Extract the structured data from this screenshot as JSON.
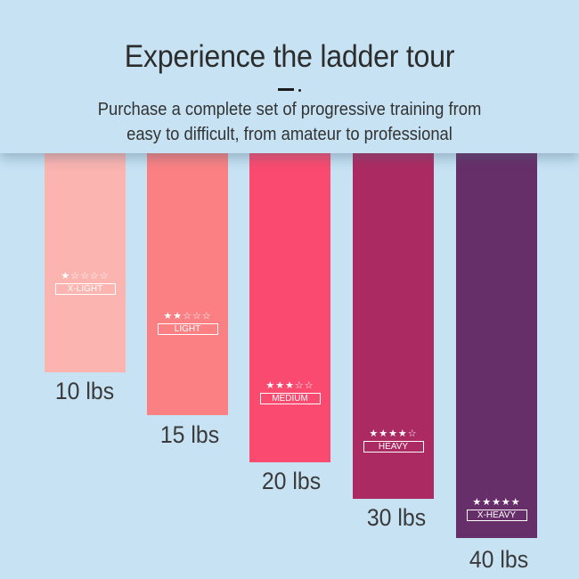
{
  "header": {
    "title": "Experience the ladder tour",
    "subtitle_line1": "Purchase a complete set of progressive training from",
    "subtitle_line2": "easy to difficult, from amateur to professional"
  },
  "bands": [
    {
      "weight": "10 lbs",
      "level": "X-LIGHT",
      "stars": "★☆☆☆☆",
      "color": "#fbb4b0",
      "rating": 1
    },
    {
      "weight": "15 lbs",
      "level": "LIGHT",
      "stars": "★★☆☆☆",
      "color": "#fa8083",
      "rating": 2
    },
    {
      "weight": "20 lbs",
      "level": "MEDIUM",
      "stars": "★★★☆☆",
      "color": "#fb4a70",
      "rating": 3
    },
    {
      "weight": "30 lbs",
      "level": "HEAVY",
      "stars": "★★★★☆",
      "color": "#ac2a62",
      "rating": 4
    },
    {
      "weight": "40 lbs",
      "level": "X-HEAVY",
      "stars": "★★★★★",
      "color": "#672f69",
      "rating": 5
    }
  ]
}
